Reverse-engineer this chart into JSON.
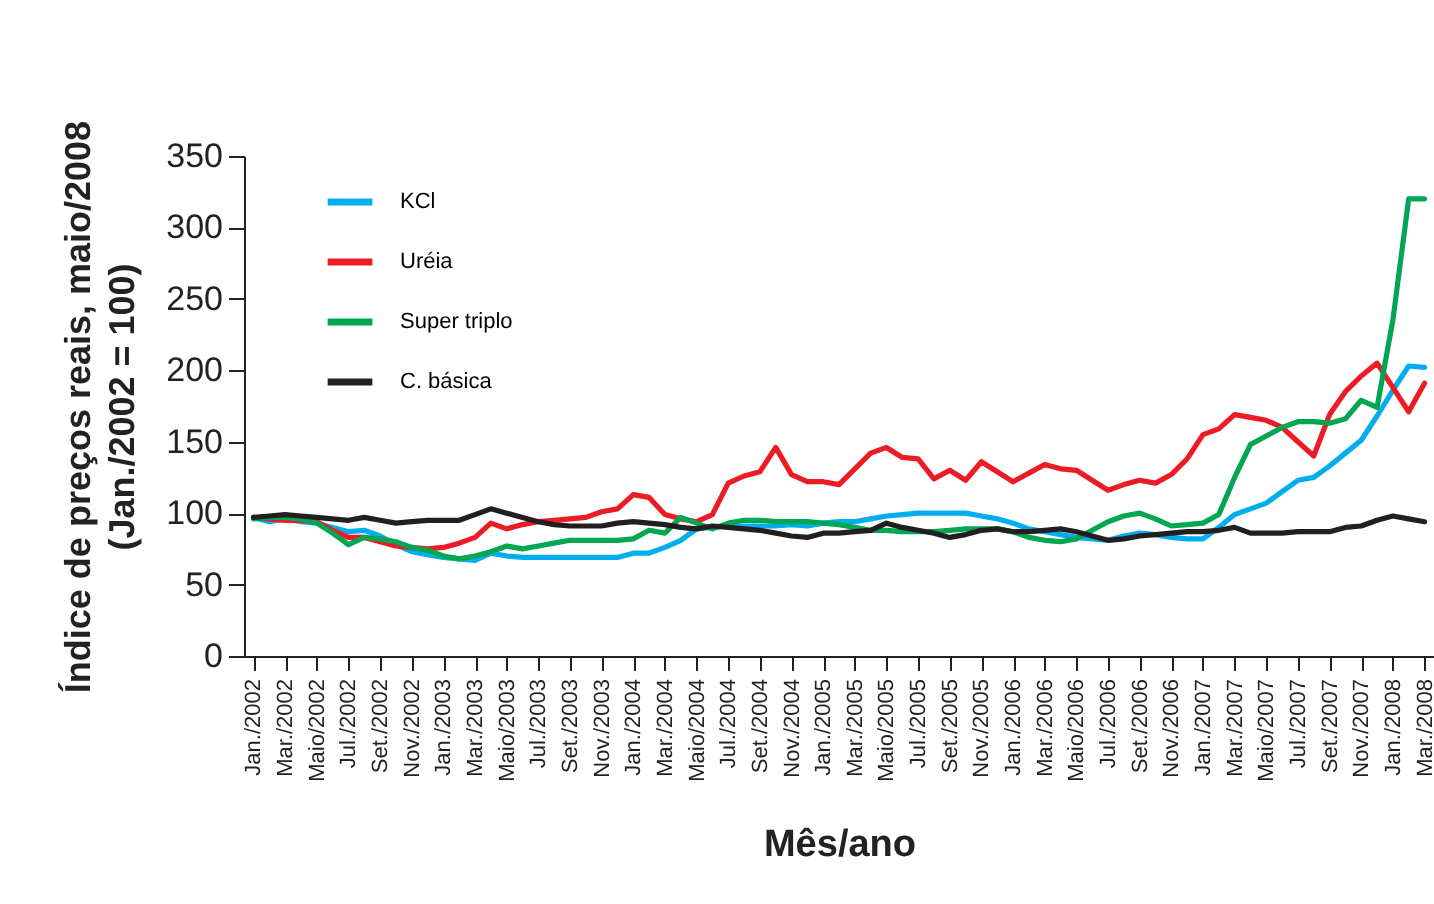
{
  "chart_data": {
    "type": "line",
    "ylabel": "Índice de preços reais, maio/2008\n(Jan./2002 = 100)",
    "xlabel": "Mês/ano",
    "categories": [
      "Jan./2002",
      null,
      "Mar./2002",
      null,
      "Maio/2002",
      null,
      "Jul./2002",
      null,
      "Set./2002",
      null,
      "Nov./2002",
      null,
      "Jan./2003",
      null,
      "Mar./2003",
      null,
      "Maio/2003",
      null,
      "Jul./2003",
      null,
      "Set./2003",
      null,
      "Nov./2003",
      null,
      "Jan./2004",
      null,
      "Mar./2004",
      null,
      "Maio/2004",
      null,
      "Jul./2004",
      null,
      "Set./2004",
      null,
      "Nov./2004",
      null,
      "Jan./2005",
      null,
      "Mar./2005",
      null,
      "Maio/2005",
      null,
      "Jul./2005",
      null,
      "Set./2005",
      null,
      "Nov./2005",
      null,
      "Jan./2006",
      null,
      "Mar./2006",
      null,
      "Maio/2006",
      null,
      "Jul./2006",
      null,
      "Set./2006",
      null,
      "Nov./2006",
      null,
      "Jan./2007",
      null,
      "Mar./2007",
      null,
      "Maio/2007",
      null,
      "Jul./2007",
      null,
      "Set./2007",
      null,
      "Nov./2007",
      null,
      "Jan./2008",
      null,
      "Mar./2008"
    ],
    "series": [
      {
        "name": "KCl",
        "color": "#00aeef",
        "values": [
          97,
          94,
          96,
          94,
          93,
          90,
          87,
          88,
          84,
          78,
          73,
          71,
          69,
          68,
          67,
          72,
          70,
          69,
          69,
          69,
          69,
          69,
          69,
          69,
          72,
          72,
          76,
          81,
          89,
          90,
          91,
          91,
          91,
          91,
          92,
          91,
          93,
          94,
          94,
          96,
          98,
          99,
          100,
          100,
          100,
          100,
          98,
          96,
          93,
          89,
          87,
          85,
          83,
          82,
          81,
          84,
          86,
          85,
          83,
          82,
          82,
          90,
          99,
          103,
          107,
          115,
          123,
          125,
          133,
          142,
          151,
          168,
          186,
          203,
          202
        ]
      },
      {
        "name": "Uréia",
        "color": "#ed1c24",
        "values": [
          97,
          96,
          95,
          95,
          94,
          88,
          83,
          83,
          80,
          77,
          76,
          75,
          76,
          79,
          83,
          93,
          89,
          92,
          94,
          95,
          96,
          97,
          101,
          103,
          113,
          111,
          99,
          96,
          94,
          99,
          121,
          126,
          129,
          146,
          127,
          122,
          122,
          120,
          131,
          142,
          146,
          139,
          138,
          124,
          130,
          123,
          136,
          129,
          122,
          128,
          134,
          131,
          130,
          123,
          116,
          120,
          123,
          121,
          127,
          138,
          155,
          159,
          169,
          167,
          165,
          160,
          150,
          140,
          169,
          185,
          196,
          205,
          188,
          171,
          191
        ]
      },
      {
        "name": "Super triplo",
        "color": "#00a651",
        "values": [
          96,
          97,
          97,
          96,
          93,
          86,
          78,
          83,
          82,
          80,
          76,
          74,
          70,
          68,
          70,
          73,
          77,
          75,
          77,
          79,
          81,
          81,
          81,
          81,
          82,
          88,
          86,
          97,
          93,
          89,
          93,
          95,
          95,
          94,
          94,
          94,
          93,
          92,
          90,
          88,
          88,
          87,
          87,
          87,
          88,
          89,
          89,
          89,
          87,
          83,
          81,
          80,
          82,
          88,
          94,
          98,
          100,
          96,
          91,
          92,
          93,
          99,
          125,
          148,
          154,
          160,
          164,
          164,
          163,
          166,
          179,
          174,
          235,
          320,
          320
        ]
      },
      {
        "name": "C. básica",
        "color": "#231f20",
        "values": [
          97,
          98,
          99,
          98,
          97,
          96,
          95,
          97,
          95,
          93,
          94,
          95,
          95,
          95,
          99,
          103,
          100,
          97,
          94,
          92,
          91,
          91,
          91,
          93,
          94,
          93,
          92,
          90,
          89,
          91,
          90,
          89,
          88,
          86,
          84,
          83,
          86,
          86,
          87,
          88,
          93,
          90,
          88,
          86,
          83,
          85,
          88,
          89,
          87,
          87,
          88,
          89,
          87,
          84,
          81,
          82,
          84,
          85,
          86,
          87,
          87,
          88,
          90,
          86,
          86,
          86,
          87,
          87,
          87,
          90,
          91,
          95,
          98,
          96,
          94
        ]
      }
    ],
    "ylim": [
      0,
      350
    ],
    "yticks": [
      0,
      50,
      100,
      150,
      200,
      250,
      300,
      350
    ],
    "legend": "top left"
  }
}
